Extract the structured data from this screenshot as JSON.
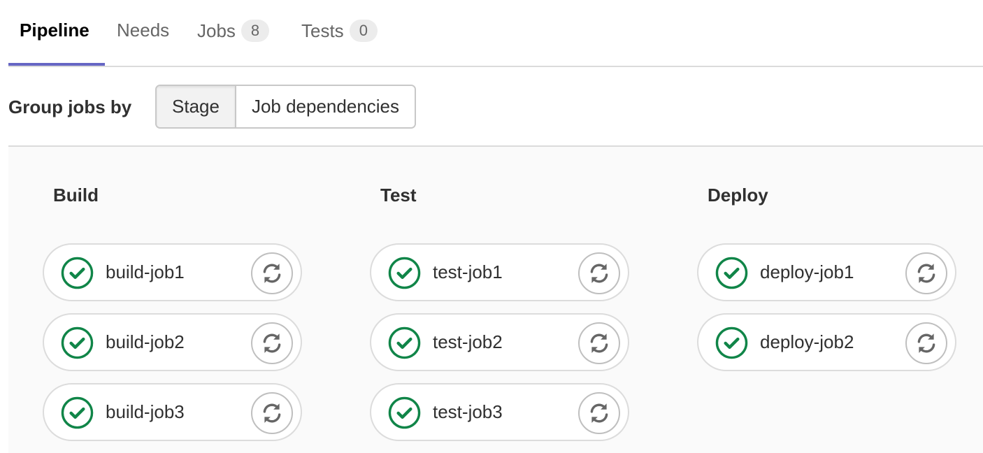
{
  "tabs": [
    {
      "label": "Pipeline",
      "active": true
    },
    {
      "label": "Needs"
    },
    {
      "label": "Jobs",
      "count": "8"
    },
    {
      "label": "Tests",
      "count": "0"
    }
  ],
  "group_by": {
    "label": "Group jobs by",
    "options": [
      "Stage",
      "Job dependencies"
    ],
    "selected": "Stage"
  },
  "colors": {
    "success": "#108548",
    "accent": "#6666c4"
  },
  "stages": [
    {
      "title": "Build",
      "jobs": [
        {
          "name": "build-job1",
          "status": "success"
        },
        {
          "name": "build-job2",
          "status": "success"
        },
        {
          "name": "build-job3",
          "status": "success"
        }
      ]
    },
    {
      "title": "Test",
      "jobs": [
        {
          "name": "test-job1",
          "status": "success"
        },
        {
          "name": "test-job2",
          "status": "success"
        },
        {
          "name": "test-job3",
          "status": "success"
        }
      ]
    },
    {
      "title": "Deploy",
      "jobs": [
        {
          "name": "deploy-job1",
          "status": "success"
        },
        {
          "name": "deploy-job2",
          "status": "success"
        }
      ]
    }
  ]
}
